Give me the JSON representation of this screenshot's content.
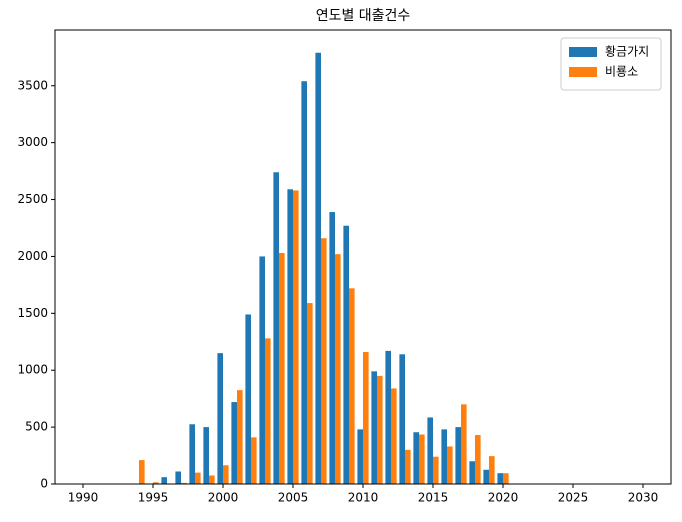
{
  "chart_data": {
    "type": "bar",
    "title": "연도별 대출건수",
    "x": [
      1994,
      1995,
      1996,
      1997,
      1998,
      1999,
      2000,
      2001,
      2002,
      2003,
      2004,
      2005,
      2006,
      2007,
      2008,
      2009,
      2010,
      2011,
      2012,
      2013,
      2014,
      2015,
      2016,
      2017,
      2018,
      2019,
      2020
    ],
    "series": [
      {
        "name": "황금가지",
        "color": "#1f77b4",
        "values": [
          0,
          0,
          60,
          110,
          525,
          500,
          1150,
          720,
          1490,
          2000,
          2740,
          2590,
          3540,
          3790,
          2390,
          2270,
          480,
          990,
          1170,
          1140,
          455,
          585,
          480,
          500,
          200,
          125,
          95
        ]
      },
      {
        "name": "비룡소",
        "color": "#ff7f0e",
        "values": [
          210,
          15,
          0,
          10,
          100,
          75,
          165,
          825,
          410,
          1280,
          2030,
          2580,
          1590,
          2160,
          2020,
          1720,
          1160,
          950,
          840,
          300,
          435,
          240,
          330,
          700,
          430,
          245,
          95
        ]
      }
    ],
    "xlim": [
      1988,
      2032
    ],
    "xticks": [
      1990,
      1995,
      2000,
      2005,
      2010,
      2015,
      2020,
      2025,
      2030
    ],
    "ylim": [
      0,
      3990
    ],
    "yticks": [
      0,
      500,
      1000,
      1500,
      2000,
      2500,
      3000,
      3500
    ],
    "legend": "upper right"
  }
}
